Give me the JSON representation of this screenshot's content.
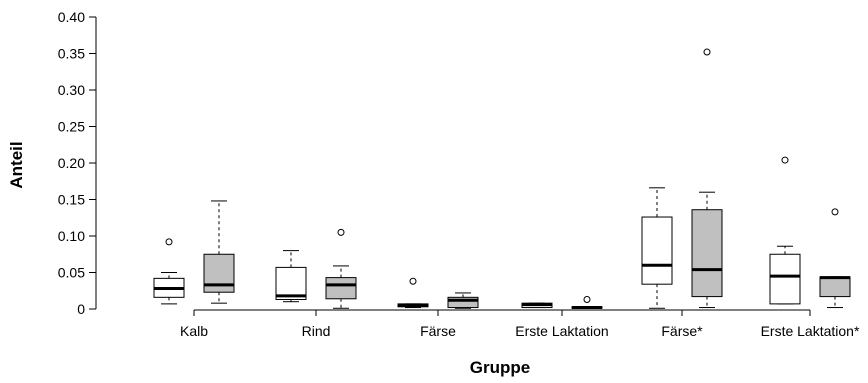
{
  "chart_data": {
    "type": "boxplot",
    "xlabel": "Gruppe",
    "ylabel": "Anteil",
    "ylim": [
      0,
      0.4
    ],
    "yticks": [
      "0",
      "0.05",
      "0.10",
      "0.15",
      "0.20",
      "0.25",
      "0.30",
      "0.35",
      "0.40"
    ],
    "categories": [
      "Kalb",
      "Rind",
      "Färse",
      "Erste Laktation",
      "Färse*",
      "Erste Laktation*"
    ],
    "series": [
      {
        "fill": "#ffffff",
        "boxes": [
          {
            "min": 0.007,
            "q1": 0.016,
            "median": 0.028,
            "q3": 0.042,
            "max": 0.05,
            "outliers": [
              0.092
            ]
          },
          {
            "min": 0.01,
            "q1": 0.013,
            "median": 0.018,
            "q3": 0.057,
            "max": 0.08,
            "outliers": []
          },
          {
            "min": 0.002,
            "q1": 0.003,
            "median": 0.005,
            "q3": 0.007,
            "max": 0.007,
            "outliers": [
              0.038
            ]
          },
          {
            "min": 0.002,
            "q1": 0.002,
            "median": 0.006,
            "q3": 0.008,
            "max": 0.008,
            "outliers": []
          },
          {
            "min": 0.001,
            "q1": 0.034,
            "median": 0.06,
            "q3": 0.126,
            "max": 0.166,
            "outliers": []
          },
          {
            "min": 0.007,
            "q1": 0.007,
            "median": 0.045,
            "q3": 0.075,
            "max": 0.086,
            "outliers": [
              0.204
            ]
          }
        ]
      },
      {
        "fill": "#c0c0c0",
        "boxes": [
          {
            "min": 0.008,
            "q1": 0.023,
            "median": 0.033,
            "q3": 0.075,
            "max": 0.148,
            "outliers": []
          },
          {
            "min": 0.001,
            "q1": 0.014,
            "median": 0.033,
            "q3": 0.043,
            "max": 0.059,
            "outliers": [
              0.105
            ]
          },
          {
            "min": 0.001,
            "q1": 0.002,
            "median": 0.012,
            "q3": 0.016,
            "max": 0.022,
            "outliers": []
          },
          {
            "min": 0.001,
            "q1": 0.001,
            "median": 0.002,
            "q3": 0.003,
            "max": 0.003,
            "outliers": [
              0.013
            ]
          },
          {
            "min": 0.002,
            "q1": 0.017,
            "median": 0.054,
            "q3": 0.136,
            "max": 0.16,
            "outliers": [
              0.352
            ]
          },
          {
            "min": 0.002,
            "q1": 0.017,
            "median": 0.043,
            "q3": 0.044,
            "max": 0.044,
            "outliers": [
              0.133
            ]
          }
        ]
      }
    ]
  }
}
